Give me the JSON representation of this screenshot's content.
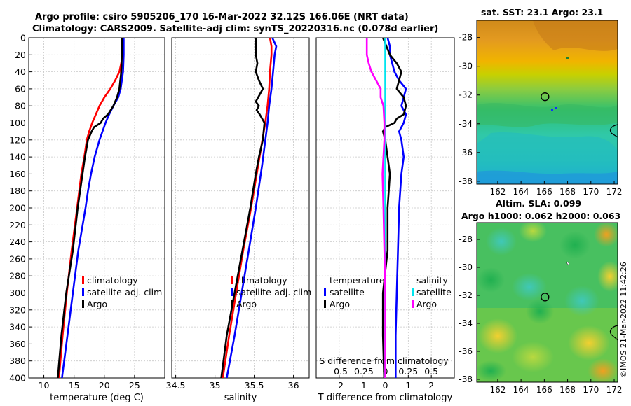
{
  "titles": {
    "line1": "Argo profile: csiro 5905206_170 16-Mar-2022 32.12S 166.06E (NRT data)",
    "line2": "Climatology: CARS2009. Satellite-adj clim: synTS_20220316.nc (0.078d earlier)",
    "sst": "sat. SST: 23.1 Argo: 23.1",
    "sla_line1": "Altim. SLA: 0.099",
    "sla_line2": "Argo h1000: 0.062 h2000: 0.063"
  },
  "footer": {
    "credit": "©IMOS 21-Mar-2022 11:42:26"
  },
  "colors": {
    "climatology": "#ff0000",
    "satellite": "#0000ff",
    "argo": "#000000",
    "sat_s": "#00e5ee",
    "argo_s": "#ff00ff"
  },
  "legends": {
    "temp": [
      "climatology",
      "satellite-adj. clim",
      "Argo"
    ],
    "sal": [
      "climatology",
      "satellite-adj. clim",
      "Argo"
    ],
    "diff_t_header": "temperature",
    "diff_s_header": "salinity",
    "diff_t": [
      "satellite",
      "Argo"
    ],
    "diff_s": [
      "satellite",
      "Argo"
    ]
  },
  "chart_data": [
    {
      "id": "temperature",
      "type": "line",
      "xlabel": "temperature (deg C)",
      "ylabel": "",
      "xlim": [
        7.5,
        30
      ],
      "ylim": [
        0,
        400
      ],
      "y_reversed": true,
      "grid": true,
      "xticks": [
        10,
        15,
        20,
        25
      ],
      "yticks": [
        0,
        20,
        40,
        60,
        80,
        100,
        120,
        140,
        160,
        180,
        200,
        220,
        240,
        260,
        280,
        300,
        320,
        340,
        360,
        380,
        400
      ],
      "series": [
        {
          "name": "climatology",
          "color": "#ff0000",
          "depth": [
            0,
            10,
            20,
            30,
            40,
            50,
            60,
            70,
            80,
            90,
            100,
            110,
            120,
            140,
            160,
            200,
            250,
            300,
            350,
            400
          ],
          "values": [
            23.1,
            23.0,
            23.0,
            22.8,
            22.5,
            21.8,
            21.0,
            20.0,
            19.2,
            18.6,
            18.0,
            17.5,
            17.1,
            16.7,
            16.2,
            15.5,
            14.6,
            13.8,
            13.1,
            12.5
          ]
        },
        {
          "name": "satellite-adj. clim",
          "color": "#0000ff",
          "depth": [
            0,
            20,
            40,
            60,
            70,
            80,
            90,
            100,
            120,
            140,
            160,
            180,
            200,
            250,
            300,
            350,
            400
          ],
          "values": [
            23.2,
            23.2,
            23.1,
            22.7,
            22.3,
            21.5,
            20.8,
            20.2,
            19.2,
            18.4,
            17.8,
            17.3,
            16.9,
            15.7,
            14.8,
            13.9,
            13.0
          ]
        },
        {
          "name": "Argo",
          "color": "#000000",
          "depth": [
            0,
            20,
            40,
            60,
            70,
            80,
            90,
            95,
            100,
            105,
            110,
            120,
            140,
            160,
            200,
            250,
            300,
            350,
            400
          ],
          "values": [
            22.9,
            22.9,
            22.8,
            22.5,
            22.1,
            21.5,
            20.6,
            19.8,
            19.4,
            18.3,
            17.9,
            17.3,
            16.8,
            16.4,
            15.6,
            14.8,
            13.7,
            12.9,
            12.3
          ]
        }
      ]
    },
    {
      "id": "salinity",
      "type": "line",
      "xlabel": "salinity",
      "ylabel": "",
      "xlim": [
        34.45,
        36.2
      ],
      "ylim": [
        0,
        400
      ],
      "y_reversed": true,
      "grid": true,
      "xticks": [
        34.5,
        35,
        35.5,
        36
      ],
      "yticks": [],
      "series": [
        {
          "name": "climatology",
          "color": "#ff0000",
          "depth": [
            0,
            10,
            20,
            40,
            60,
            80,
            100,
            150,
            200,
            250,
            300,
            350,
            400
          ],
          "values": [
            35.7,
            35.72,
            35.72,
            35.7,
            35.69,
            35.67,
            35.64,
            35.55,
            35.46,
            35.36,
            35.27,
            35.18,
            35.1
          ]
        },
        {
          "name": "satellite-adj. clim",
          "color": "#0000ff",
          "depth": [
            0,
            10,
            20,
            40,
            60,
            80,
            100,
            150,
            200,
            250,
            300,
            350,
            400
          ],
          "values": [
            35.73,
            35.78,
            35.76,
            35.74,
            35.72,
            35.69,
            35.67,
            35.6,
            35.52,
            35.43,
            35.34,
            35.25,
            35.15
          ]
        },
        {
          "name": "Argo",
          "color": "#000000",
          "depth": [
            0,
            10,
            20,
            30,
            40,
            50,
            60,
            70,
            75,
            80,
            85,
            90,
            95,
            100,
            110,
            120,
            140,
            160,
            200,
            250,
            300,
            350,
            400
          ],
          "values": [
            35.52,
            35.52,
            35.52,
            35.54,
            35.52,
            35.56,
            35.61,
            35.55,
            35.52,
            35.56,
            35.53,
            35.57,
            35.6,
            35.63,
            35.62,
            35.61,
            35.56,
            35.52,
            35.45,
            35.35,
            35.25,
            35.15,
            35.08
          ]
        }
      ]
    },
    {
      "id": "difference",
      "type": "line",
      "xlabel": "T difference from climatology",
      "xlabel_top": "S difference from climatology",
      "xlim": [
        -3,
        3
      ],
      "ylim": [
        0,
        400
      ],
      "y_reversed": true,
      "grid": true,
      "xticks": [
        -2,
        -1,
        0,
        1,
        2
      ],
      "xticks_s_labels": [
        "-0.5",
        "-0.25",
        "0",
        "0.25",
        "0.5"
      ],
      "s_scale": 4,
      "series": [
        {
          "name": "T satellite",
          "color": "#0000ff",
          "style": "solid",
          "depth": [
            0,
            10,
            20,
            30,
            40,
            50,
            60,
            70,
            80,
            90,
            100,
            110,
            120,
            140,
            160,
            200,
            250,
            300,
            350,
            400
          ],
          "values": [
            0.1,
            0.2,
            0.2,
            0.3,
            0.4,
            0.6,
            0.9,
            0.8,
            0.7,
            0.9,
            0.8,
            0.6,
            0.7,
            0.8,
            0.7,
            0.6,
            0.55,
            0.5,
            0.45,
            0.45
          ]
        },
        {
          "name": "T Argo",
          "color": "#000000",
          "style": "solid",
          "depth": [
            0,
            20,
            30,
            40,
            50,
            60,
            70,
            80,
            90,
            95,
            100,
            105,
            110,
            120,
            140,
            160,
            200,
            250,
            300,
            350,
            400
          ],
          "values": [
            -0.1,
            0.2,
            0.5,
            0.7,
            0.6,
            0.5,
            0.8,
            0.9,
            0.8,
            0.5,
            0.4,
            0.0,
            -0.1,
            0.0,
            0.1,
            0.2,
            0.1,
            0.1,
            -0.1,
            -0.1,
            -0.05
          ]
        },
        {
          "name": "S satellite",
          "color": "#00e5ee",
          "style": "solid",
          "depth": [
            0,
            20,
            40,
            60,
            80,
            100,
            150,
            200,
            250,
            300,
            350,
            400
          ],
          "values": [
            0.0,
            0.0,
            0.0,
            0.0,
            0.0,
            0.0,
            0.0,
            0.0,
            0.0,
            0.0,
            0.0,
            0.0
          ]
        },
        {
          "name": "S Argo",
          "color": "#ff00ff",
          "style": "solid",
          "depth": [
            0,
            10,
            20,
            30,
            40,
            50,
            60,
            70,
            80,
            100,
            120,
            140,
            160,
            200,
            250,
            300,
            350,
            400
          ],
          "values": [
            -0.2,
            -0.2,
            -0.2,
            -0.18,
            -0.15,
            -0.1,
            -0.05,
            -0.05,
            -0.02,
            -0.01,
            -0.01,
            -0.02,
            -0.03,
            -0.02,
            -0.01,
            0.0,
            0.0,
            0.0
          ]
        }
      ]
    },
    {
      "id": "sst_map",
      "type": "heatmap",
      "xlim": [
        160.2,
        172.3
      ],
      "ylim": [
        -38.2,
        -26.8
      ],
      "xticks": [
        162,
        164,
        166,
        168,
        170,
        172
      ],
      "yticks": [
        -28,
        -30,
        -32,
        -34,
        -36,
        -38
      ],
      "marker": {
        "lon": 166.06,
        "lat": -32.12
      }
    },
    {
      "id": "sla_map",
      "type": "heatmap",
      "xlim": [
        160.2,
        172.3
      ],
      "ylim": [
        -38.2,
        -26.8
      ],
      "xticks": [
        162,
        164,
        166,
        168,
        170,
        172
      ],
      "yticks": [
        -28,
        -30,
        -32,
        -34,
        -36,
        -38
      ],
      "marker": {
        "lon": 166.06,
        "lat": -32.12
      }
    }
  ]
}
